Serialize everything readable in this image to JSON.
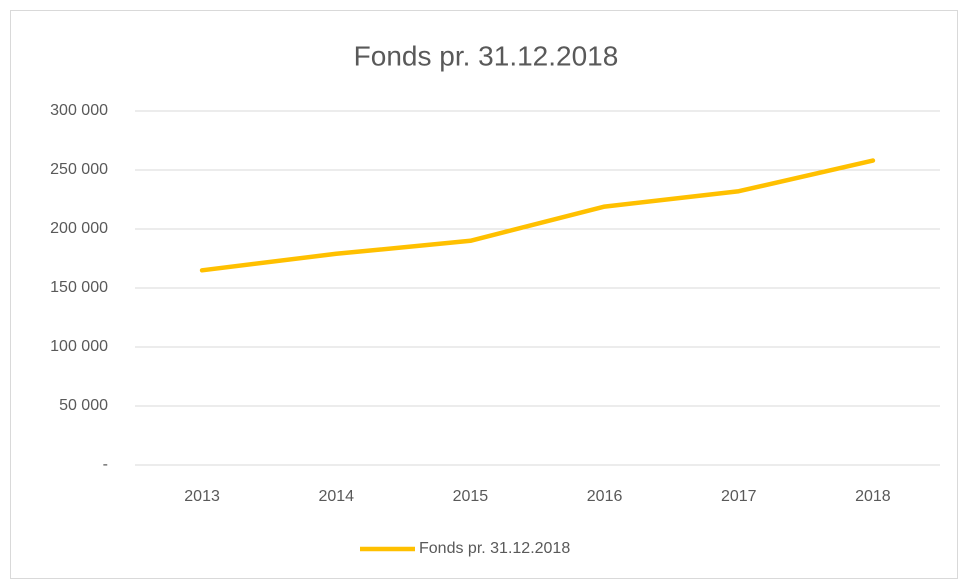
{
  "chart_data": {
    "type": "line",
    "title": "Fonds pr. 31.12.2018",
    "categories": [
      "2013",
      "2014",
      "2015",
      "2016",
      "2017",
      "2018"
    ],
    "series": [
      {
        "name": "Fonds pr. 31.12.2018",
        "color": "#ffc000",
        "values": [
          165000,
          179000,
          190000,
          219000,
          232000,
          258000
        ]
      }
    ],
    "ylim": [
      0,
      300000
    ],
    "yticks": [
      {
        "value": 0,
        "label": "-"
      },
      {
        "value": 50000,
        "label": "50 000"
      },
      {
        "value": 100000,
        "label": "100 000"
      },
      {
        "value": 150000,
        "label": "150 000"
      },
      {
        "value": 200000,
        "label": "200 000"
      },
      {
        "value": 250000,
        "label": "250 000"
      },
      {
        "value": 300000,
        "label": "300 000"
      }
    ],
    "grid": true,
    "legend": "bottom"
  }
}
